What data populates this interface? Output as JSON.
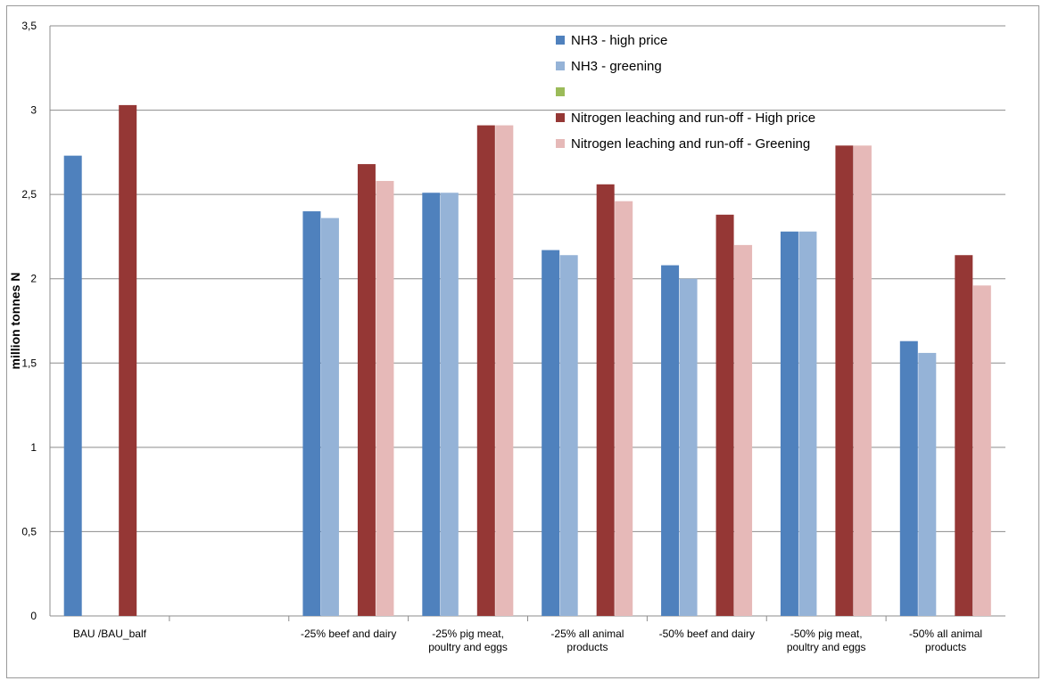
{
  "chart_data": {
    "type": "bar",
    "title": "",
    "xlabel": "",
    "ylabel": "million tonnes N",
    "ylim": [
      0,
      3.5
    ],
    "yticks": [
      "0",
      "0,5",
      "1",
      "1,5",
      "2",
      "2,5",
      "3",
      "3,5"
    ],
    "grid": true,
    "legend_position": "top-right (inside plot)",
    "categories": [
      [
        "BAU /BAU_balf"
      ],
      [
        ""
      ],
      [
        "-25% beef and dairy"
      ],
      [
        "-25% pig meat,",
        "poultry and eggs"
      ],
      [
        "-25% all animal",
        "products"
      ],
      [
        "-50% beef and dairy"
      ],
      [
        "-50% pig meat,",
        "poultry and eggs"
      ],
      [
        "-50% all animal",
        "products"
      ]
    ],
    "series": [
      {
        "name": "NH3  - high price",
        "color": "#4F81BD",
        "values": [
          2.73,
          null,
          2.4,
          2.51,
          2.17,
          2.08,
          2.28,
          1.63
        ]
      },
      {
        "name": "NH3  - greening",
        "color": "#95B3D7",
        "values": [
          null,
          null,
          2.36,
          2.51,
          2.14,
          2.0,
          2.28,
          1.56
        ]
      },
      {
        "name": "",
        "color": "#9BBB59",
        "values": [
          null,
          null,
          null,
          null,
          null,
          null,
          null,
          null
        ]
      },
      {
        "name": "Nitrogen leaching and run-off - High price",
        "color": "#953735",
        "values": [
          3.03,
          null,
          2.68,
          2.91,
          2.56,
          2.38,
          2.79,
          2.14
        ]
      },
      {
        "name": "Nitrogen leaching and run-off - Greening",
        "color": "#E6B9B8",
        "values": [
          null,
          null,
          2.58,
          2.91,
          2.46,
          2.2,
          2.79,
          1.96
        ]
      }
    ]
  }
}
